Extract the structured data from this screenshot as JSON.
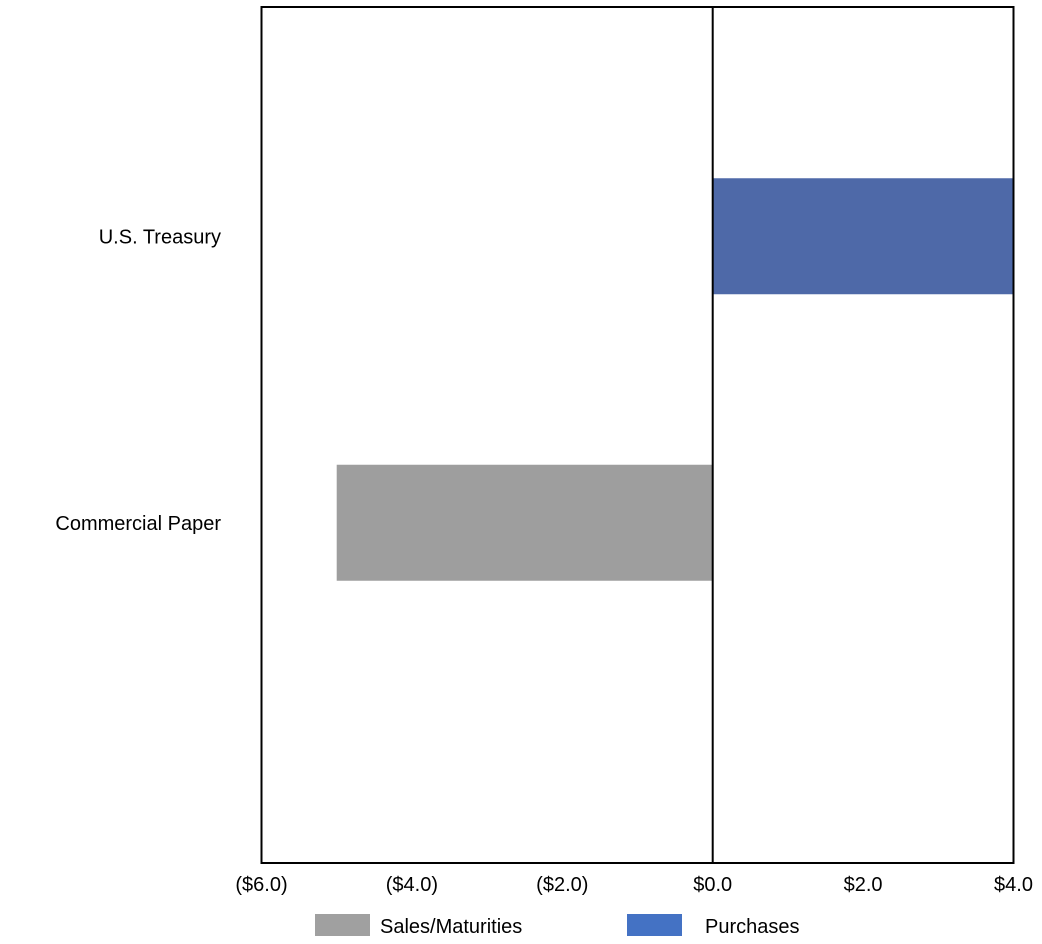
{
  "chart_data": {
    "type": "bar",
    "orientation": "horizontal",
    "categories": [
      "U.S. Treasury",
      "Commercial Paper"
    ],
    "series": [
      {
        "name": "Sales/Maturities",
        "color": "#9e9e9e",
        "values": [
          0.0,
          -5.0
        ]
      },
      {
        "name": "Purchases",
        "color": "#4e69a8",
        "values": [
          4.0,
          0.0
        ]
      }
    ],
    "xlim": [
      -6.0,
      4.0
    ],
    "x_ticks": [
      -6.0,
      -4.0,
      -2.0,
      0.0,
      2.0,
      4.0
    ],
    "x_tick_labels": [
      "($6.0)",
      "($4.0)",
      "($2.0)",
      "$0.0",
      "$2.0",
      "$4.0"
    ],
    "title": "",
    "xlabel": "",
    "ylabel": "",
    "grid": false,
    "legend_position": "bottom",
    "legend_colors": {
      "Sales/Maturities": "#a0a0a0",
      "Purchases": "#4472c4"
    }
  }
}
